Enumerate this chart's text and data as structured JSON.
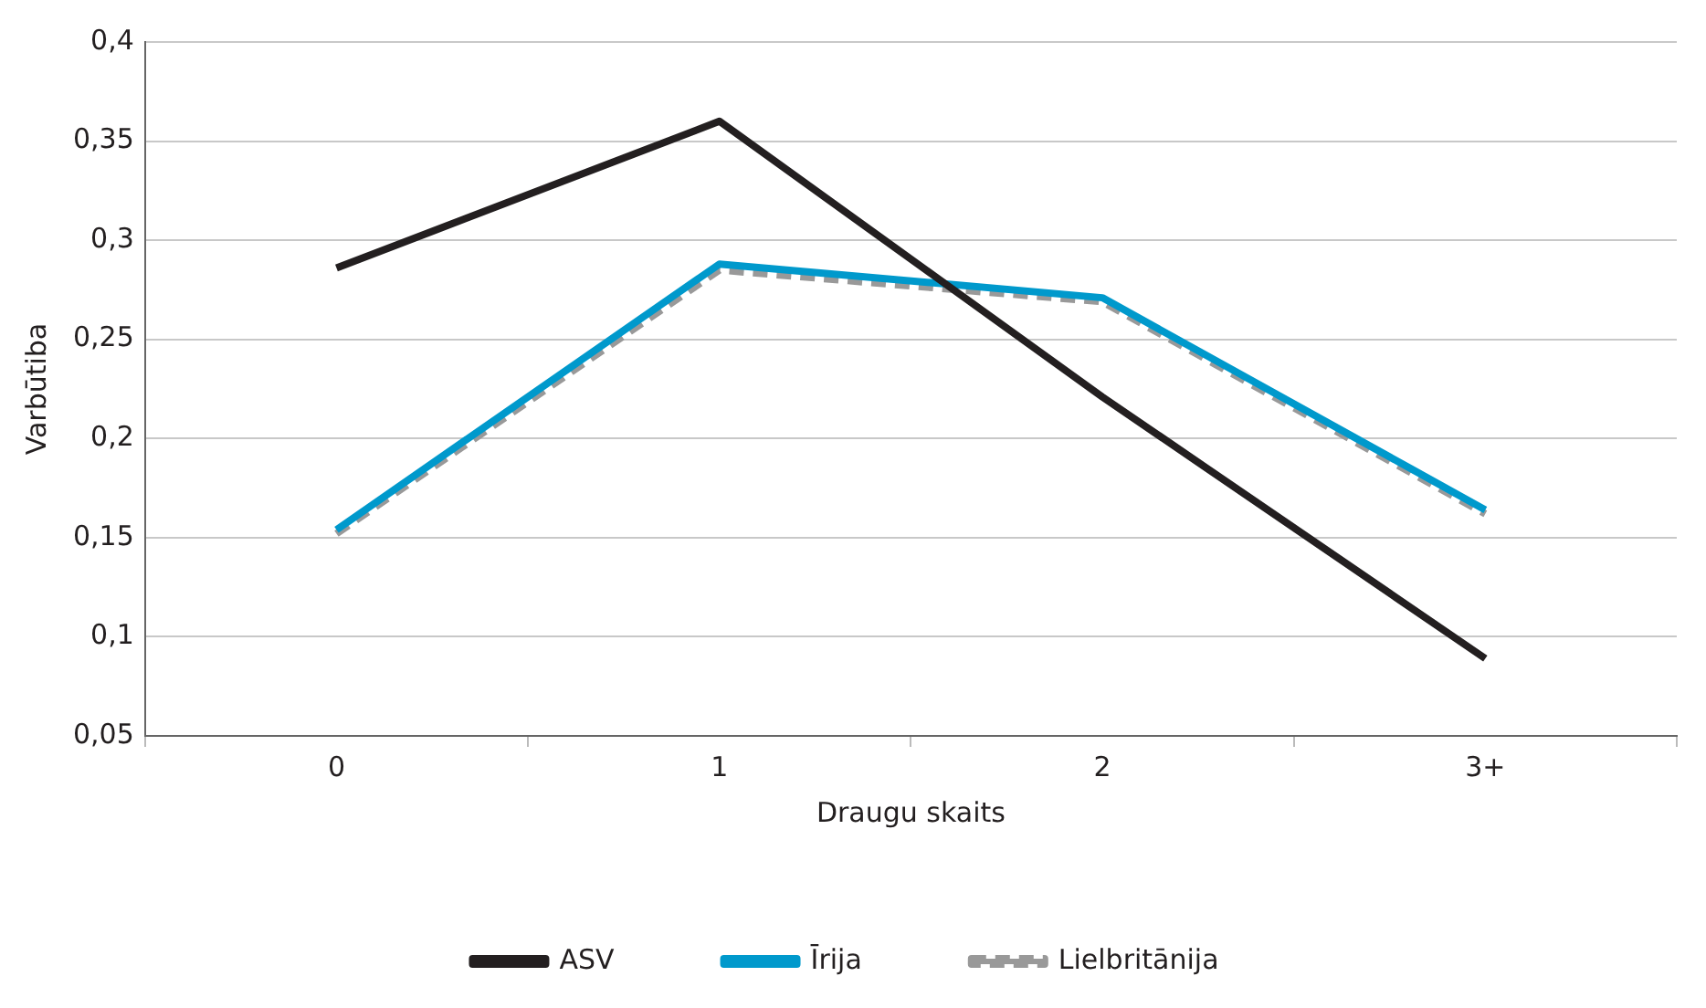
{
  "chart_data": {
    "type": "line",
    "xlabel": "Draugu skaits",
    "ylabel": "Varbūtiba",
    "categories": [
      "0",
      "1",
      "2",
      "3+"
    ],
    "series": [
      {
        "name": "ASV",
        "color": "#231f20",
        "values": [
          0.286,
          0.36,
          0.221,
          0.089
        ]
      },
      {
        "name": "Īrija",
        "color": "#0099cc",
        "values": [
          0.154,
          0.288,
          0.271,
          0.164
        ]
      },
      {
        "name": "Lielbritānija",
        "color": "#999999",
        "values": [
          0.152,
          0.285,
          0.269,
          0.162
        ],
        "line_style": "dashed"
      }
    ],
    "ylim": [
      0.05,
      0.4
    ],
    "yticks": [
      {
        "value": 0.05,
        "label": "0,05"
      },
      {
        "value": 0.1,
        "label": "0,1"
      },
      {
        "value": 0.15,
        "label": "0,15"
      },
      {
        "value": 0.2,
        "label": "0,2"
      },
      {
        "value": 0.25,
        "label": "0,25"
      },
      {
        "value": 0.3,
        "label": "0,3"
      },
      {
        "value": 0.35,
        "label": "0,35"
      },
      {
        "value": 0.4,
        "label": "0,4"
      }
    ],
    "grid": "y",
    "legend": "bottom",
    "marker": "none",
    "line_style": "solid"
  }
}
